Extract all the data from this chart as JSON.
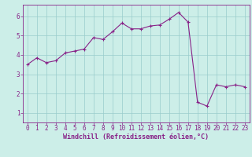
{
  "x": [
    0,
    1,
    2,
    3,
    4,
    5,
    6,
    7,
    8,
    9,
    10,
    11,
    12,
    13,
    14,
    15,
    16,
    17,
    18,
    19,
    20,
    21,
    22,
    23
  ],
  "y": [
    3.5,
    3.85,
    3.6,
    3.7,
    4.1,
    4.2,
    4.3,
    4.9,
    4.8,
    5.2,
    5.65,
    5.35,
    5.35,
    5.5,
    5.55,
    5.85,
    6.2,
    5.7,
    1.55,
    1.35,
    2.45,
    2.35,
    2.45,
    2.35
  ],
  "line_color": "#882288",
  "marker": "+",
  "marker_color": "#882288",
  "bg_color": "#cceee8",
  "grid_color": "#99cccc",
  "xlabel": "Windchill (Refroidissement éolien,°C)",
  "ylim": [
    0.5,
    6.6
  ],
  "xlim": [
    -0.5,
    23.5
  ],
  "yticks": [
    1,
    2,
    3,
    4,
    5,
    6
  ],
  "xticks": [
    0,
    1,
    2,
    3,
    4,
    5,
    6,
    7,
    8,
    9,
    10,
    11,
    12,
    13,
    14,
    15,
    16,
    17,
    18,
    19,
    20,
    21,
    22,
    23
  ],
  "axis_label_color": "#882288",
  "tick_color": "#882288",
  "spine_color": "#882288",
  "xlabel_fontsize": 6.0,
  "tick_fontsize": 5.5
}
